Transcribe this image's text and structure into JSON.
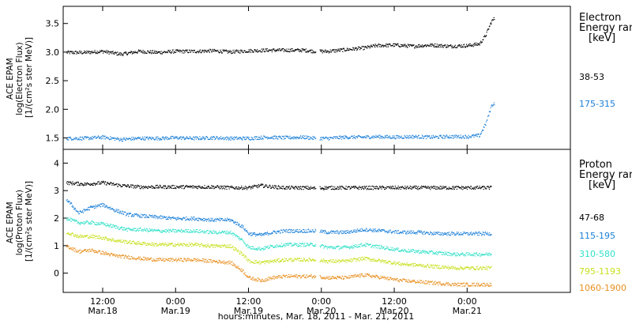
{
  "chart_data": {
    "type": "scatter",
    "x_axis": {
      "label": "hours:minutes, Mar. 18, 2011 - Mar. 21, 2011",
      "unit": "hours since Mar. 18 00:00",
      "range": [
        5.5,
        89
      ],
      "ticks": [
        {
          "x": 12,
          "time": "12:00",
          "date": "Mar.18"
        },
        {
          "x": 24,
          "time": "0:00",
          "date": "Mar.19"
        },
        {
          "x": 36,
          "time": "12:00",
          "date": "Mar.19"
        },
        {
          "x": 48,
          "time": "0:00",
          "date": "Mar.20"
        },
        {
          "x": 60,
          "time": "12:00",
          "date": "Mar.20"
        },
        {
          "x": 72,
          "time": "0:00",
          "date": "Mar.21"
        }
      ]
    },
    "panels": [
      {
        "ylabel": [
          "ACE EPAM",
          "log(Electron Flux)",
          "[1/(cm²s ster MeV)]"
        ],
        "ylim": [
          1.3,
          3.8
        ],
        "yticks": [
          1.5,
          2.0,
          2.5,
          3.0,
          3.5
        ],
        "ytick_labels": [
          "1.5",
          "2.0",
          "2.5",
          "3.0",
          "3.5"
        ],
        "legend_title": [
          "Electron",
          "Energy ranges",
          "[keV]"
        ],
        "series": [
          {
            "name": "38-53",
            "color": "#000000",
            "points": [
              [
                6,
                3.0
              ],
              [
                9,
                3.0
              ],
              [
                12,
                3.02
              ],
              [
                15,
                2.97
              ],
              [
                18,
                3.02
              ],
              [
                21,
                3.0
              ],
              [
                24,
                3.02
              ],
              [
                27,
                3.02
              ],
              [
                30,
                3.03
              ],
              [
                33,
                3.01
              ],
              [
                36,
                3.03
              ],
              [
                39,
                3.04
              ],
              [
                42,
                3.04
              ],
              [
                45,
                3.04
              ],
              [
                47,
                3.02
              ],
              [
                49,
                3.02
              ],
              [
                52,
                3.05
              ],
              [
                55,
                3.08
              ],
              [
                57,
                3.12
              ],
              [
                60,
                3.13
              ],
              [
                63,
                3.11
              ],
              [
                66,
                3.13
              ],
              [
                69,
                3.11
              ],
              [
                72,
                3.12
              ],
              [
                74,
                3.15
              ],
              [
                75,
                3.3
              ],
              [
                76,
                3.55
              ],
              [
                76.5,
                3.6
              ]
            ]
          },
          {
            "name": "175-315",
            "color": "#1a7fd8",
            "points": [
              [
                6,
                1.5
              ],
              [
                9,
                1.5
              ],
              [
                12,
                1.52
              ],
              [
                15,
                1.48
              ],
              [
                18,
                1.5
              ],
              [
                21,
                1.5
              ],
              [
                24,
                1.51
              ],
              [
                27,
                1.5
              ],
              [
                30,
                1.51
              ],
              [
                33,
                1.5
              ],
              [
                36,
                1.5
              ],
              [
                39,
                1.52
              ],
              [
                42,
                1.51
              ],
              [
                45,
                1.52
              ],
              [
                47,
                1.5
              ],
              [
                49,
                1.5
              ],
              [
                52,
                1.52
              ],
              [
                55,
                1.52
              ],
              [
                57,
                1.53
              ],
              [
                60,
                1.52
              ],
              [
                63,
                1.53
              ],
              [
                66,
                1.52
              ],
              [
                69,
                1.53
              ],
              [
                72,
                1.53
              ],
              [
                74,
                1.55
              ],
              [
                75,
                1.75
              ],
              [
                76,
                2.08
              ],
              [
                76.5,
                2.12
              ]
            ]
          }
        ]
      },
      {
        "ylabel": [
          "ACE EPAM",
          "log(Proton Flux)",
          "[1/(cm²s ster MeV)]"
        ],
        "ylim": [
          -0.7,
          4.5
        ],
        "yticks": [
          0,
          1,
          2,
          3,
          4
        ],
        "ytick_labels": [
          "0",
          "1",
          "2",
          "3",
          "4"
        ],
        "legend_title": [
          "Proton",
          "Energy ranges",
          "[keV]"
        ],
        "series": [
          {
            "name": "47-68",
            "color": "#000000",
            "points": [
              [
                6,
                3.3
              ],
              [
                9,
                3.25
              ],
              [
                12,
                3.3
              ],
              [
                15,
                3.2
              ],
              [
                18,
                3.15
              ],
              [
                21,
                3.15
              ],
              [
                24,
                3.15
              ],
              [
                27,
                3.15
              ],
              [
                30,
                3.15
              ],
              [
                33,
                3.12
              ],
              [
                36,
                3.12
              ],
              [
                38,
                3.2
              ],
              [
                40,
                3.15
              ],
              [
                42,
                3.12
              ],
              [
                45,
                3.12
              ],
              [
                47,
                3.1
              ],
              [
                49,
                3.12
              ],
              [
                52,
                3.12
              ],
              [
                55,
                3.12
              ],
              [
                58,
                3.12
              ],
              [
                61,
                3.12
              ],
              [
                64,
                3.12
              ],
              [
                67,
                3.12
              ],
              [
                70,
                3.12
              ],
              [
                73,
                3.12
              ],
              [
                76,
                3.12
              ]
            ]
          },
          {
            "name": "115-195",
            "color": "#1a7fd8",
            "points": [
              [
                6,
                2.7
              ],
              [
                8,
                2.2
              ],
              [
                10,
                2.4
              ],
              [
                12,
                2.5
              ],
              [
                14,
                2.3
              ],
              [
                16,
                2.15
              ],
              [
                18,
                2.1
              ],
              [
                21,
                2.05
              ],
              [
                24,
                2.0
              ],
              [
                27,
                2.0
              ],
              [
                30,
                1.95
              ],
              [
                33,
                1.95
              ],
              [
                35,
                1.7
              ],
              [
                36,
                1.45
              ],
              [
                38,
                1.4
              ],
              [
                40,
                1.5
              ],
              [
                42,
                1.55
              ],
              [
                45,
                1.55
              ],
              [
                47,
                1.55
              ],
              [
                49,
                1.5
              ],
              [
                52,
                1.5
              ],
              [
                55,
                1.6
              ],
              [
                58,
                1.55
              ],
              [
                61,
                1.5
              ],
              [
                64,
                1.5
              ],
              [
                67,
                1.45
              ],
              [
                70,
                1.45
              ],
              [
                73,
                1.45
              ],
              [
                76,
                1.45
              ]
            ]
          },
          {
            "name": "310-580",
            "color": "#30e0c8",
            "points": [
              [
                6,
                2.0
              ],
              [
                8,
                1.85
              ],
              [
                10,
                1.85
              ],
              [
                12,
                1.8
              ],
              [
                14,
                1.7
              ],
              [
                16,
                1.6
              ],
              [
                18,
                1.6
              ],
              [
                21,
                1.55
              ],
              [
                24,
                1.55
              ],
              [
                27,
                1.55
              ],
              [
                30,
                1.5
              ],
              [
                33,
                1.5
              ],
              [
                35,
                1.2
              ],
              [
                36,
                0.95
              ],
              [
                38,
                0.9
              ],
              [
                40,
                1.0
              ],
              [
                42,
                1.05
              ],
              [
                45,
                1.05
              ],
              [
                47,
                1.05
              ],
              [
                49,
                0.95
              ],
              [
                52,
                0.95
              ],
              [
                55,
                1.05
              ],
              [
                58,
                0.95
              ],
              [
                61,
                0.85
              ],
              [
                64,
                0.8
              ],
              [
                67,
                0.75
              ],
              [
                70,
                0.7
              ],
              [
                73,
                0.7
              ],
              [
                76,
                0.7
              ]
            ]
          },
          {
            "name": "795-1193",
            "color": "#c8e020",
            "points": [
              [
                6,
                1.5
              ],
              [
                8,
                1.35
              ],
              [
                10,
                1.35
              ],
              [
                12,
                1.3
              ],
              [
                14,
                1.2
              ],
              [
                16,
                1.15
              ],
              [
                18,
                1.1
              ],
              [
                21,
                1.05
              ],
              [
                24,
                1.05
              ],
              [
                27,
                1.05
              ],
              [
                30,
                1.0
              ],
              [
                33,
                1.0
              ],
              [
                35,
                0.7
              ],
              [
                36,
                0.45
              ],
              [
                38,
                0.4
              ],
              [
                40,
                0.45
              ],
              [
                42,
                0.5
              ],
              [
                45,
                0.5
              ],
              [
                47,
                0.5
              ],
              [
                49,
                0.45
              ],
              [
                52,
                0.45
              ],
              [
                55,
                0.55
              ],
              [
                58,
                0.45
              ],
              [
                61,
                0.35
              ],
              [
                64,
                0.3
              ],
              [
                67,
                0.25
              ],
              [
                70,
                0.2
              ],
              [
                73,
                0.2
              ],
              [
                76,
                0.2
              ]
            ]
          },
          {
            "name": "1060-1900",
            "color": "#e89020",
            "points": [
              [
                6,
                1.0
              ],
              [
                8,
                0.8
              ],
              [
                10,
                0.85
              ],
              [
                12,
                0.75
              ],
              [
                14,
                0.65
              ],
              [
                16,
                0.6
              ],
              [
                18,
                0.55
              ],
              [
                21,
                0.5
              ],
              [
                24,
                0.5
              ],
              [
                27,
                0.5
              ],
              [
                30,
                0.45
              ],
              [
                33,
                0.4
              ],
              [
                35,
                0.1
              ],
              [
                36,
                -0.15
              ],
              [
                38,
                -0.25
              ],
              [
                40,
                -0.15
              ],
              [
                42,
                -0.1
              ],
              [
                45,
                -0.1
              ],
              [
                47,
                -0.1
              ],
              [
                49,
                -0.15
              ],
              [
                52,
                -0.15
              ],
              [
                55,
                -0.05
              ],
              [
                58,
                -0.15
              ],
              [
                61,
                -0.25
              ],
              [
                64,
                -0.3
              ],
              [
                67,
                -0.35
              ],
              [
                70,
                -0.4
              ],
              [
                73,
                -0.4
              ],
              [
                76,
                -0.4
              ]
            ]
          }
        ]
      }
    ]
  }
}
